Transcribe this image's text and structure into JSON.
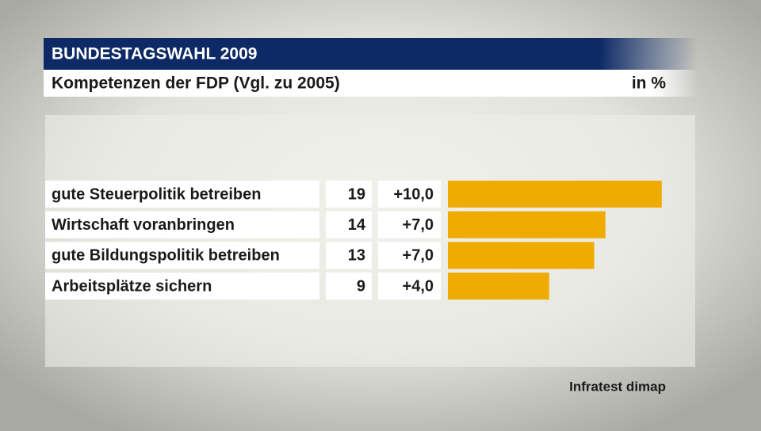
{
  "chart_data": {
    "type": "bar",
    "header": "BUNDESTAGSWAHL 2009",
    "title": "Kompetenzen der FDP (Vgl. zu 2005)",
    "unit": "in %",
    "source": "Infratest dimap",
    "categories": [
      "gute Steuerpolitik betreiben",
      "Wirtschaft voranbringen",
      "gute Bildungspolitik betreiben",
      "Arbeitsplätze sichern"
    ],
    "values": [
      19,
      14,
      13,
      9
    ],
    "changes": {
      "values": [
        10.0,
        7.0,
        7.0,
        4.0
      ],
      "value_labels": [
        "+10,0",
        "+7,0",
        "+7,0",
        "+4,0"
      ]
    },
    "color": "#f0ab00"
  }
}
